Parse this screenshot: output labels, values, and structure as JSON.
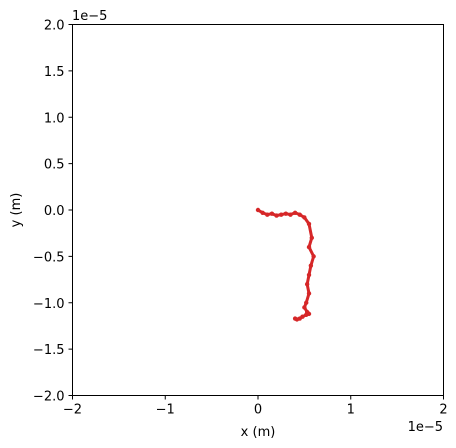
{
  "chart_data": {
    "type": "scatter",
    "title": "",
    "xlabel": "x (m)",
    "ylabel": "y (m)",
    "x_offset_label": "1e−5",
    "y_offset_label": "1e−5",
    "xlim": [
      -2e-05,
      2e-05
    ],
    "ylim": [
      -2e-05,
      2e-05
    ],
    "x_ticks": [
      -2e-05,
      -1e-05,
      0,
      1e-05,
      2e-05
    ],
    "x_tick_labels": [
      "−2",
      "−1",
      "0",
      "1",
      "2"
    ],
    "y_ticks": [
      2e-05,
      1.5e-05,
      1e-05,
      5e-06,
      0,
      -5e-06,
      -1e-05,
      -1.5e-05,
      -2e-05
    ],
    "y_tick_labels": [
      "2.0",
      "1.5",
      "1.0",
      "0.5",
      "0.0",
      "−0.5",
      "−1.0",
      "−1.5",
      "−2.0"
    ],
    "grid": false,
    "series_color": "#d62728",
    "x": [
      0.0,
      5e-07,
      1e-06,
      1.5e-06,
      2e-06,
      2.5e-06,
      3e-06,
      3.5e-06,
      4e-06,
      4.5e-06,
      5e-06,
      5.5e-06,
      5.8e-06,
      5.5e-06,
      6e-06,
      5.7e-06,
      5.5e-06,
      5.3e-06,
      5.5e-06,
      5.2e-06,
      5e-06,
      5.3e-06,
      5.5e-06,
      5.2e-06,
      4.8e-06,
      4.5e-06,
      4.2e-06,
      4e-06
    ],
    "y": [
      0.0,
      -3e-07,
      -5e-07,
      -4e-07,
      -6e-07,
      -5e-07,
      -4e-07,
      -5e-07,
      -3e-07,
      -5e-07,
      -8e-07,
      -1.5e-06,
      -3e-06,
      -4e-06,
      -5e-06,
      -6e-06,
      -7e-06,
      -8e-06,
      -9e-06,
      -1e-05,
      -1.05e-05,
      -1.1e-05,
      -1.12e-05,
      -1.13e-05,
      -1.15e-05,
      -1.17e-05,
      -1.18e-05,
      -1.17e-05
    ]
  }
}
